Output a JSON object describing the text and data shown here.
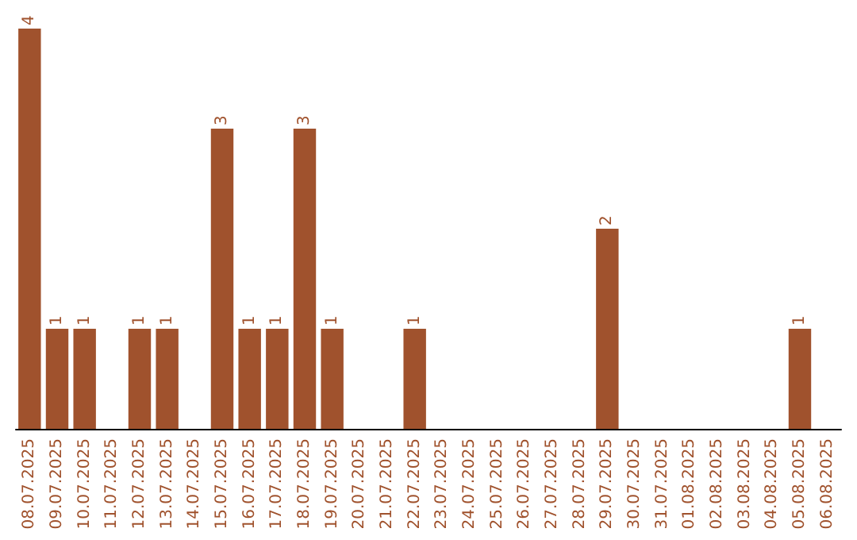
{
  "chart_data": {
    "type": "bar",
    "categories": [
      "08.07.2025",
      "09.07.2025",
      "10.07.2025",
      "11.07.2025",
      "12.07.2025",
      "13.07.2025",
      "14.07.2025",
      "15.07.2025",
      "16.07.2025",
      "17.07.2025",
      "18.07.2025",
      "19.07.2025",
      "20.07.2025",
      "21.07.2025",
      "22.07.2025",
      "23.07.2025",
      "24.07.2025",
      "25.07.2025",
      "26.07.2025",
      "27.07.2025",
      "28.07.2025",
      "29.07.2025",
      "30.07.2025",
      "31.07.2025",
      "01.08.2025",
      "02.08.2025",
      "03.08.2025",
      "04.08.2025",
      "05.08.2025",
      "06.08.2025"
    ],
    "values": [
      4,
      1,
      1,
      0,
      1,
      1,
      0,
      3,
      1,
      1,
      3,
      1,
      0,
      0,
      1,
      0,
      0,
      0,
      0,
      0,
      0,
      2,
      0,
      0,
      0,
      0,
      0,
      0,
      1,
      0
    ],
    "value_labels": [
      "4",
      "1",
      "1",
      null,
      "1",
      "1",
      null,
      "3",
      "1",
      "1",
      "3",
      "1",
      null,
      null,
      "1",
      null,
      null,
      null,
      null,
      null,
      null,
      "2",
      null,
      null,
      null,
      null,
      null,
      null,
      "1",
      null
    ],
    "color": "#a0522d",
    "tick_labels": "x"
  }
}
